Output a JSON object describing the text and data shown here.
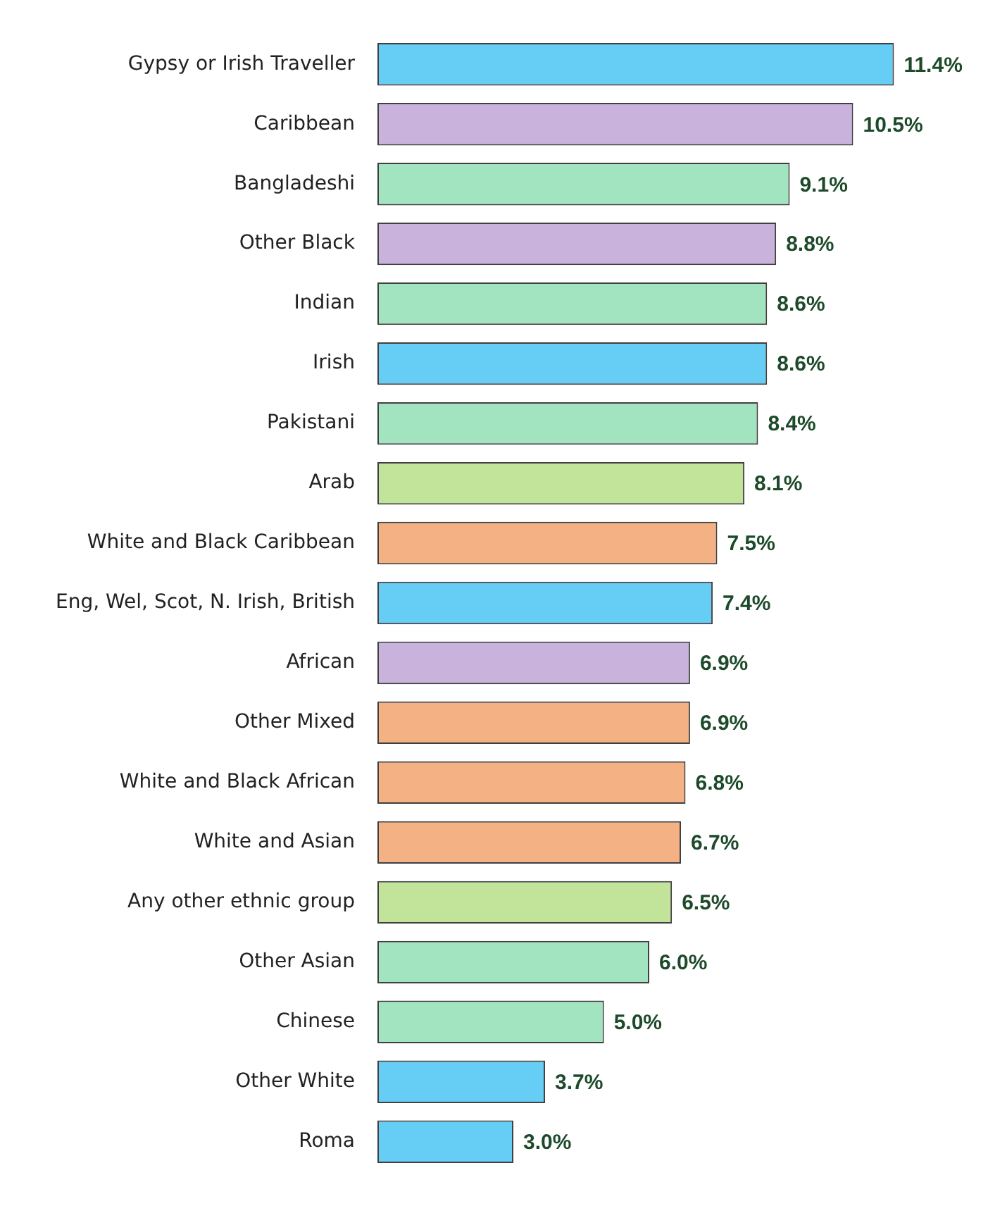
{
  "chart_data": {
    "type": "bar",
    "orientation": "horizontal",
    "categories": [
      "Gypsy or Irish Traveller",
      "Caribbean",
      "Bangladeshi",
      "Other Black",
      "Indian",
      "Irish",
      "Pakistani",
      "Arab",
      "White and Black Caribbean",
      "Eng, Wel, Scot, N. Irish, British",
      "African",
      "Other Mixed",
      "White and Black African",
      "White and Asian",
      "Any other ethnic group",
      "Other Asian",
      "Chinese",
      "Other White",
      "Roma"
    ],
    "values": [
      11.4,
      10.5,
      9.1,
      8.8,
      8.6,
      8.6,
      8.4,
      8.1,
      7.5,
      7.4,
      6.9,
      6.9,
      6.8,
      6.7,
      6.5,
      6.0,
      5.0,
      3.7,
      3.0
    ],
    "value_labels": [
      "11.4%",
      "10.5%",
      "9.1%",
      "8.8%",
      "8.6%",
      "8.6%",
      "8.4%",
      "8.1%",
      "7.5%",
      "7.4%",
      "6.9%",
      "6.9%",
      "6.8%",
      "6.7%",
      "6.5%",
      "6.0%",
      "5.0%",
      "3.7%",
      "3.0%"
    ],
    "colors": [
      "#66cdf5",
      "#c9b3dd",
      "#a3e4c0",
      "#c9b3dd",
      "#a3e4c0",
      "#66cdf5",
      "#a3e4c0",
      "#c2e39a",
      "#f4b183",
      "#66cdf5",
      "#c9b3dd",
      "#f4b183",
      "#f4b183",
      "#f4b183",
      "#c2e39a",
      "#a3e4c0",
      "#a3e4c0",
      "#66cdf5",
      "#66cdf5"
    ],
    "tick_labels": "y",
    "legend": false
  }
}
